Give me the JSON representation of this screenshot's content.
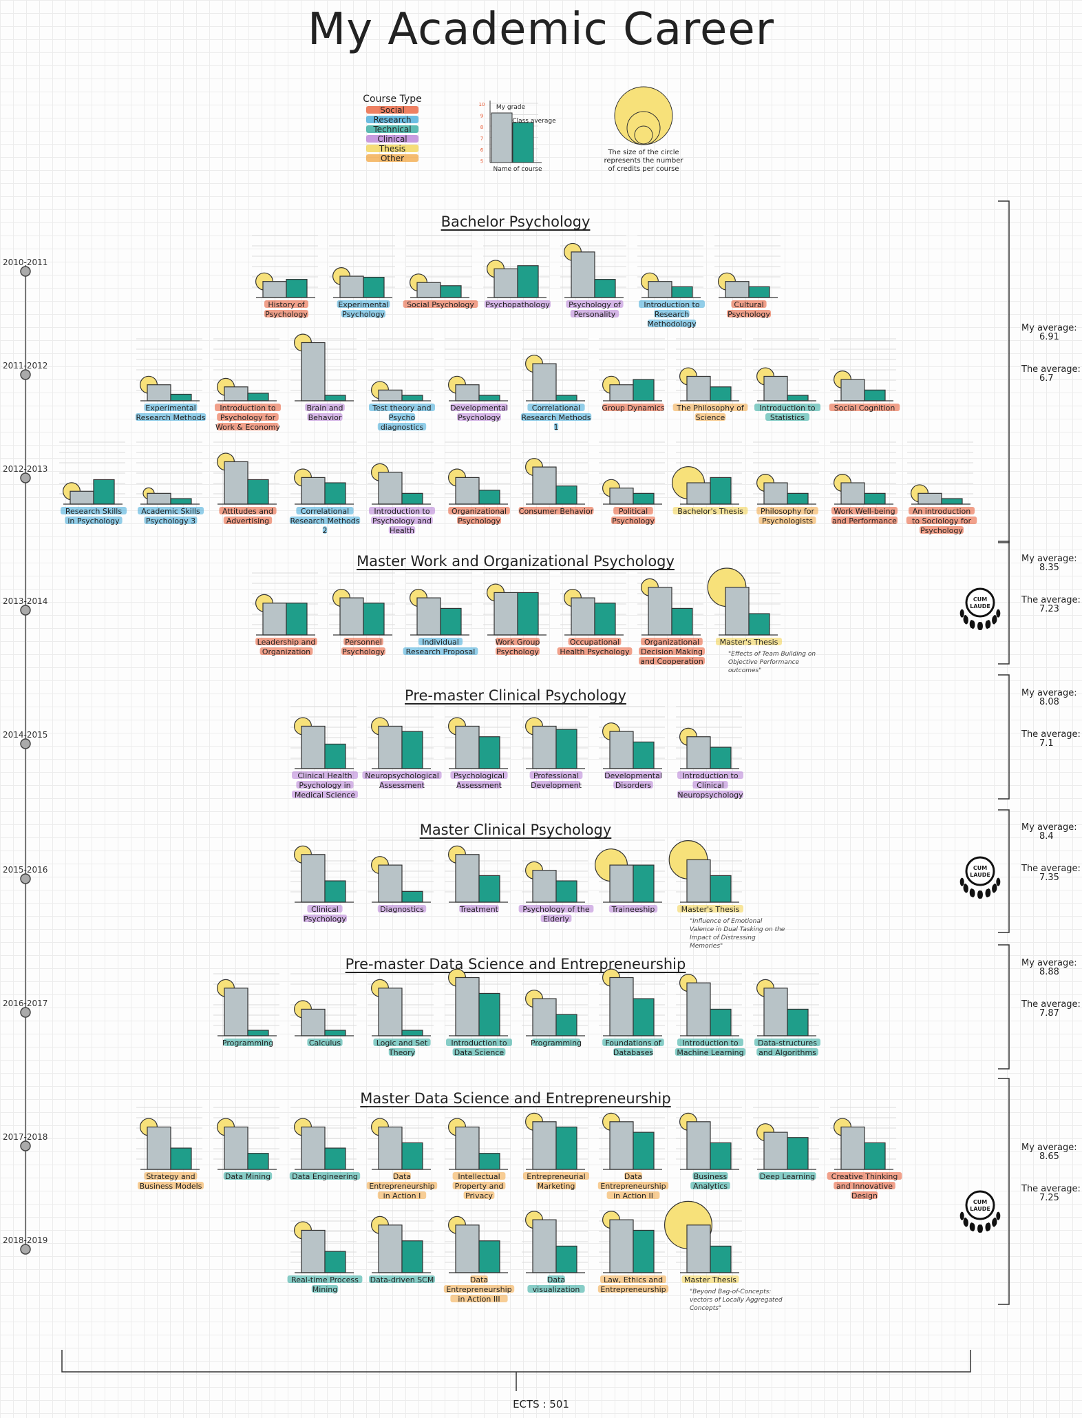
{
  "title": "My Academic Career",
  "legend": {
    "course_type_title": "Course Type",
    "types": [
      {
        "key": "social",
        "label": "Social",
        "color": "#e8552d"
      },
      {
        "key": "research",
        "label": "Research",
        "color": "#3aa7d8"
      },
      {
        "key": "technical",
        "label": "Technical",
        "color": "#26a69a"
      },
      {
        "key": "clinical",
        "label": "Clinical",
        "color": "#b57bd6"
      },
      {
        "key": "thesis",
        "label": "Thesis",
        "color": "#f2d24b"
      },
      {
        "key": "other",
        "label": "Other",
        "color": "#f2a640"
      }
    ],
    "axis_ticks": [
      "10",
      "9",
      "8",
      "7",
      "6",
      "5"
    ],
    "my_grade": "My grade",
    "class_average": "Class average",
    "name_of_course": "Name of course",
    "circle_note": "The size of the circle represents the number of credits per course"
  },
  "colors": {
    "my_bar": "#b8c3c7",
    "avg_bar": "#1f9e8a",
    "circle": "#f7e17a"
  },
  "programs": [
    {
      "title": "Bachelor Psychology",
      "my_average_label": "My average:",
      "my_average": "6.91",
      "the_average_label": "The average:",
      "the_average": "6.7",
      "cum_laude": ""
    },
    {
      "title": "Master Work and Organizational Psychology",
      "my_average_label": "My average:",
      "my_average": "8.35",
      "the_average_label": "The average:",
      "the_average": "7.23",
      "cum_laude": "CUM LAUDE"
    },
    {
      "title": "Pre-master Clinical Psychology",
      "my_average_label": "My average:",
      "my_average": "8.08",
      "the_average_label": "The average:",
      "the_average": "7.1",
      "cum_laude": ""
    },
    {
      "title": "Master Clinical Psychology",
      "my_average_label": "My average:",
      "my_average": "8.4",
      "the_average_label": "The average:",
      "the_average": "7.35",
      "cum_laude": "CUM LAUDE"
    },
    {
      "title": "Pre-master Data Science and Entrepreneurship",
      "my_average_label": "My average:",
      "my_average": "8.88",
      "the_average_label": "The average:",
      "the_average": "7.87",
      "cum_laude": ""
    },
    {
      "title": "Master Data Science and Entrepreneurship",
      "my_average_label": "My average:",
      "my_average": "8.65",
      "the_average_label": "The average:",
      "the_average": "7.25",
      "cum_laude": "CUM LAUDE"
    }
  ],
  "years": [
    "2010-2011",
    "2011-2012",
    "2012-2013",
    "2013-2014",
    "2014-2015",
    "2015-2016",
    "2016-2017",
    "2017-2018",
    "2018-2019"
  ],
  "ects_label": "ECTS : 501",
  "chart_data": {
    "type": "bar",
    "description_fields": [
      "name",
      "type",
      "my_grade",
      "class_average",
      "credits"
    ],
    "ylim": [
      0,
      10
    ],
    "rows": [
      {
        "year": "2010-2011",
        "courses": [
          {
            "name": "History of Psychology",
            "type": "social",
            "my": 6.0,
            "avg": 6.2,
            "ects": 5
          },
          {
            "name": "Experimental Psychology",
            "type": "research",
            "my": 6.5,
            "avg": 6.4,
            "ects": 5
          },
          {
            "name": "Social Psychology",
            "type": "social",
            "my": 5.9,
            "avg": 5.6,
            "ects": 5
          },
          {
            "name": "Psychopathology",
            "type": "clinical",
            "my": 7.2,
            "avg": 7.5,
            "ects": 5
          },
          {
            "name": "Psychology of Personality",
            "type": "clinical",
            "my": 8.8,
            "avg": 6.2,
            "ects": 5
          },
          {
            "name": "Introduction to Research Methodology",
            "type": "research",
            "my": 6.0,
            "avg": 5.5,
            "ects": 5
          },
          {
            "name": "Cultural Psychology",
            "type": "social",
            "my": 6.0,
            "avg": 5.5,
            "ects": 5
          }
        ]
      },
      {
        "year": "2011-2012",
        "courses": [
          {
            "name": "Experimental Research Methods",
            "type": "research",
            "my": 6.0,
            "avg": 5.1,
            "ects": 5
          },
          {
            "name": "Introduction to Psychology for Work & Economy",
            "type": "social",
            "my": 5.8,
            "avg": 5.2,
            "ects": 5
          },
          {
            "name": "Brain and Behavior",
            "type": "clinical",
            "my": 10.0,
            "avg": 5.0,
            "ects": 5
          },
          {
            "name": "Test theory and Psycho diagnostics",
            "type": "research",
            "my": 5.5,
            "avg": 5.0,
            "ects": 5
          },
          {
            "name": "Developmental Psychology",
            "type": "clinical",
            "my": 6.0,
            "avg": 5.0,
            "ects": 5
          },
          {
            "name": "Correlational Research Methods 1",
            "type": "research",
            "my": 8.0,
            "avg": 5.0,
            "ects": 5
          },
          {
            "name": "Group Dynamics",
            "type": "social",
            "my": 6.0,
            "avg": 6.5,
            "ects": 5
          },
          {
            "name": "The Philosophy of Science",
            "type": "other",
            "my": 6.8,
            "avg": 5.8,
            "ects": 5
          },
          {
            "name": "Introduction to Statistics",
            "type": "technical",
            "my": 6.8,
            "avg": 5.0,
            "ects": 5
          },
          {
            "name": "Social Cognition",
            "type": "social",
            "my": 6.5,
            "avg": 5.5,
            "ects": 5
          }
        ]
      },
      {
        "year": "2012-2013",
        "courses": [
          {
            "name": "Research Skills in Psychology",
            "type": "research",
            "my": 5.7,
            "avg": 6.8,
            "ects": 5
          },
          {
            "name": "Academic Skills Psychology 3",
            "type": "research",
            "my": 5.5,
            "avg": 5.0,
            "ects": 3
          },
          {
            "name": "Attitudes and Advertising",
            "type": "social",
            "my": 8.5,
            "avg": 6.8,
            "ects": 5
          },
          {
            "name": "Correlational Research Methods 2",
            "type": "research",
            "my": 7.0,
            "avg": 6.5,
            "ects": 5
          },
          {
            "name": "Introduction to Psychology and Health",
            "type": "clinical",
            "my": 7.5,
            "avg": 5.5,
            "ects": 5
          },
          {
            "name": "Organizational Psychology",
            "type": "social",
            "my": 7.0,
            "avg": 5.8,
            "ects": 5
          },
          {
            "name": "Consumer Behavior",
            "type": "social",
            "my": 8.0,
            "avg": 6.2,
            "ects": 5
          },
          {
            "name": "Political Psychology",
            "type": "social",
            "my": 6.0,
            "avg": 5.5,
            "ects": 5
          },
          {
            "name": "Bachelor's Thesis",
            "type": "thesis",
            "my": 6.5,
            "avg": 7.0,
            "ects": 10
          },
          {
            "name": "Philosophy for Psychologists",
            "type": "other",
            "my": 6.5,
            "avg": 5.5,
            "ects": 5
          },
          {
            "name": "Work Well-being and Performance",
            "type": "social",
            "my": 6.5,
            "avg": 5.5,
            "ects": 5
          },
          {
            "name": "An introduction to Sociology for Psychology",
            "type": "social",
            "my": 5.5,
            "avg": 5.0,
            "ects": 5
          }
        ]
      },
      {
        "year": "2013-2014",
        "courses": [
          {
            "name": "Leadership and Organization",
            "type": "social",
            "my": 7.5,
            "avg": 7.5,
            "ects": 5
          },
          {
            "name": "Personnel Psychology",
            "type": "social",
            "my": 8.0,
            "avg": 7.5,
            "ects": 5
          },
          {
            "name": "Individual Research Proposal",
            "type": "research",
            "my": 8.0,
            "avg": 7.0,
            "ects": 5
          },
          {
            "name": "Work Group Psychology",
            "type": "social",
            "my": 8.5,
            "avg": 8.5,
            "ects": 5
          },
          {
            "name": "Occupational Health Psychology",
            "type": "social",
            "my": 8.0,
            "avg": 7.5,
            "ects": 5
          },
          {
            "name": "Organizational Decision Making and Cooperation",
            "type": "social",
            "my": 9.0,
            "avg": 7.0,
            "ects": 5
          },
          {
            "name": "Master's Thesis",
            "type": "thesis",
            "my": 9.0,
            "avg": 6.5,
            "ects": 12
          }
        ]
      },
      {
        "year": "2014-2015",
        "courses": [
          {
            "name": "Clinical Health Psychology in Medical Science",
            "type": "clinical",
            "my": 8.5,
            "avg": 6.8,
            "ects": 5
          },
          {
            "name": "Neuropsychological Assessment",
            "type": "clinical",
            "my": 8.5,
            "avg": 8.0,
            "ects": 5
          },
          {
            "name": "Psychological Assessment",
            "type": "clinical",
            "my": 8.5,
            "avg": 7.5,
            "ects": 5
          },
          {
            "name": "Professional Development",
            "type": "clinical",
            "my": 8.5,
            "avg": 8.2,
            "ects": 5
          },
          {
            "name": "Developmental Disorders",
            "type": "clinical",
            "my": 8.0,
            "avg": 7.0,
            "ects": 5
          },
          {
            "name": "Introduction to Clinical Neuropsychology",
            "type": "clinical",
            "my": 7.5,
            "avg": 6.5,
            "ects": 5
          }
        ]
      },
      {
        "year": "2015-2016",
        "courses": [
          {
            "name": "Clinical Psychology",
            "type": "clinical",
            "my": 9.0,
            "avg": 6.5,
            "ects": 5
          },
          {
            "name": "Diagnostics",
            "type": "clinical",
            "my": 8.0,
            "avg": 5.5,
            "ects": 5
          },
          {
            "name": "Treatment",
            "type": "clinical",
            "my": 9.0,
            "avg": 7.0,
            "ects": 5
          },
          {
            "name": "Psychology of the Elderly",
            "type": "clinical",
            "my": 7.5,
            "avg": 6.5,
            "ects": 5
          },
          {
            "name": "Traineeship",
            "type": "clinical",
            "my": 8.0,
            "avg": 8.0,
            "ects": 10
          },
          {
            "name": "Master's Thesis",
            "type": "thesis",
            "my": 8.5,
            "avg": 7.0,
            "ects": 12
          }
        ]
      },
      {
        "year": "2016-2017",
        "courses": [
          {
            "name": "Programming",
            "type": "technical",
            "my": 9.0,
            "avg": 5.0,
            "ects": 5
          },
          {
            "name": "Calculus",
            "type": "technical",
            "my": 7.0,
            "avg": 5.0,
            "ects": 5
          },
          {
            "name": "Logic and Set Theory",
            "type": "technical",
            "my": 9.0,
            "avg": 5.0,
            "ects": 5
          },
          {
            "name": "Introduction to Data Science",
            "type": "technical",
            "my": 10.0,
            "avg": 8.5,
            "ects": 5
          },
          {
            "name": "Programming",
            "type": "technical",
            "my": 8.0,
            "avg": 6.5,
            "ects": 5
          },
          {
            "name": "Foundations of Databases",
            "type": "technical",
            "my": 10.0,
            "avg": 8.0,
            "ects": 5
          },
          {
            "name": "Introduction to Machine Learning",
            "type": "technical",
            "my": 9.5,
            "avg": 7.0,
            "ects": 5
          },
          {
            "name": "Data-structures and Algorithms",
            "type": "technical",
            "my": 9.0,
            "avg": 7.0,
            "ects": 5
          }
        ]
      },
      {
        "year": "2017-2018",
        "courses": [
          {
            "name": "Strategy and Business Models",
            "type": "other",
            "my": 8.5,
            "avg": 6.5,
            "ects": 5
          },
          {
            "name": "Data Mining",
            "type": "technical",
            "my": 8.5,
            "avg": 6.0,
            "ects": 5
          },
          {
            "name": "Data Engineering",
            "type": "technical",
            "my": 8.5,
            "avg": 6.5,
            "ects": 5
          },
          {
            "name": "Data Entrepreneurship in Action I",
            "type": "other",
            "my": 8.5,
            "avg": 7.0,
            "ects": 5
          },
          {
            "name": "Intellectual Property and Privacy",
            "type": "other",
            "my": 8.5,
            "avg": 6.0,
            "ects": 5
          },
          {
            "name": "Entrepreneurial Marketing",
            "type": "other",
            "my": 9.0,
            "avg": 8.5,
            "ects": 5
          },
          {
            "name": "Data Entrepreneurship in Action II",
            "type": "other",
            "my": 9.0,
            "avg": 8.0,
            "ects": 5
          },
          {
            "name": "Business Analytics",
            "type": "technical",
            "my": 9.0,
            "avg": 7.0,
            "ects": 5
          },
          {
            "name": "Deep Learning",
            "type": "technical",
            "my": 8.0,
            "avg": 7.5,
            "ects": 5
          },
          {
            "name": "Creative Thinking and Innovative Design",
            "type": "social",
            "my": 8.5,
            "avg": 7.0,
            "ects": 5
          }
        ]
      },
      {
        "year": "2018-2019",
        "courses": [
          {
            "name": "Real-time Process Mining",
            "type": "technical",
            "my": 8.5,
            "avg": 6.5,
            "ects": 5
          },
          {
            "name": "Data-driven SCM",
            "type": "technical",
            "my": 9.0,
            "avg": 7.5,
            "ects": 5
          },
          {
            "name": "Data Entrepreneurship in Action III",
            "type": "other",
            "my": 9.0,
            "avg": 7.5,
            "ects": 5
          },
          {
            "name": "Data visualization",
            "type": "technical",
            "my": 9.5,
            "avg": 7.0,
            "ects": 5
          },
          {
            "name": "Law, Ethics and Entrepreneurship",
            "type": "other",
            "my": 9.5,
            "avg": 8.5,
            "ects": 5
          },
          {
            "name": "Master Thesis",
            "type": "thesis",
            "my": 9.0,
            "avg": 7.0,
            "ects": 15
          }
        ]
      }
    ],
    "thesis_notes": [
      {
        "row": "2013-2014",
        "text": "\"Effects of Team Building on Objective Performance outcomes\""
      },
      {
        "row": "2015-2016",
        "text": "\"Influence of Emotional Valence in Dual Tasking on the Impact of Distressing Memories\""
      },
      {
        "row": "2018-2019",
        "text": "\"Beyond Bag-of-Concepts: vectors of Locally Aggregated Concepts\""
      }
    ]
  }
}
